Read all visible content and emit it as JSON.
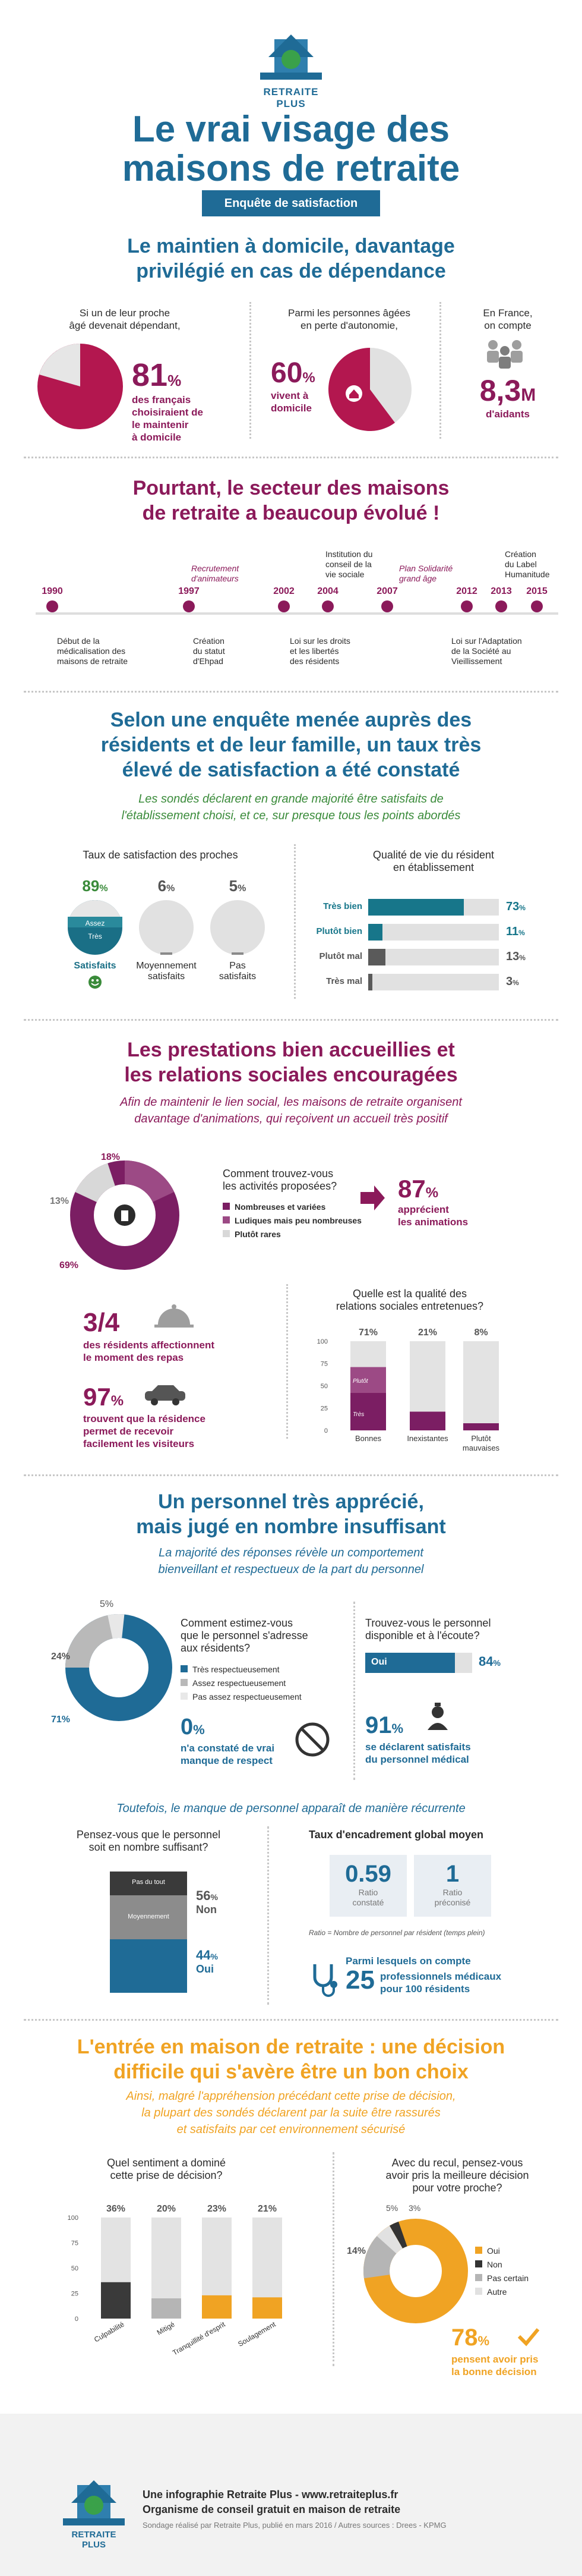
{
  "brand": {
    "name": "RETRAITE PLUS"
  },
  "header": {
    "title1": "Le vrai visage des",
    "title2": "maisons de retraite",
    "badge": "Enquête de satisfaction"
  },
  "s1": {
    "heading1": "Le maintien à domicile, davantage",
    "heading2": "privilégié en cas de dépendance",
    "c1_l1": "Si un de leur proche",
    "c1_l2": "âgé devenait dépendant,",
    "c1_pct": "81",
    "c1_unit": "%",
    "c1_t1": "des français",
    "c1_t2": "choisiraient de",
    "c1_t3": "le maintenir",
    "c1_t4": "à domicile",
    "c2_l1": "Parmi les personnes âgées",
    "c2_l2": "en perte d'autonomie,",
    "c2_pct": "60",
    "c2_unit": "%",
    "c2_t1": "vivent à",
    "c2_t2": "domicile",
    "c3_l1": "En France,",
    "c3_l2": "on compte",
    "c3_big": "8,3",
    "c3_unit": "M",
    "c3_t": "d'aidants"
  },
  "s2": {
    "heading1": "Pourtant, le secteur des maisons",
    "heading2": "de retraite a beaucoup évolué !",
    "years": [
      "1990",
      "1997",
      "2002",
      "2004",
      "2007",
      "2012",
      "2013",
      "2015"
    ],
    "above": {
      "recr1": "Recrutement",
      "recr2": "d'animateurs",
      "inst1": "Institution du",
      "inst2": "conseil de la",
      "inst3": "vie sociale",
      "plan1": "Plan Solidarité",
      "plan2": "grand âge",
      "lab1": "Création",
      "lab2": "du Label",
      "lab3": "Humanitude"
    },
    "below": {
      "deb1": "Début de la",
      "deb2": "médicalisation des",
      "deb3": "maisons de retraite",
      "cre1": "Création",
      "cre2": "du statut",
      "cre3": "d'Ehpad",
      "loi1": "Loi sur les droits",
      "loi2": "et les libertés",
      "loi3": "des résidents",
      "adp1": "Loi sur l'Adaptation",
      "adp2": "de la Société au",
      "adp3": "Vieillissement"
    }
  },
  "s3": {
    "heading1": "Selon une enquête menée auprès des",
    "heading2": "résidents et de leur famille, un taux très",
    "heading3": "élevé de satisfaction a été constaté",
    "sub1": "Les sondés déclarent en grande majorité être satisfaits de",
    "sub2": "l'établissement choisi, et ce, sur presque tous les points abordés",
    "left_title": "Taux de satisfaction des proches",
    "p1": "89",
    "p2": "6",
    "p3": "5",
    "pct": "%",
    "assez": "Assez",
    "tres": "Très",
    "l1": "Satisfaits",
    "l2a": "Moyennement",
    "l2b": "satisfaits",
    "l3a": "Pas",
    "l3b": "satisfaits",
    "right_title1": "Qualité de vie du résident",
    "right_title2": "en établissement",
    "rows": [
      {
        "label": "Très bien",
        "value": "73",
        "v": 73
      },
      {
        "label": "Plutôt bien",
        "value": "11",
        "v": 11
      },
      {
        "label": "Plutôt mal",
        "value": "13",
        "v": 13
      },
      {
        "label": "Très mal",
        "value": "3",
        "v": 3
      }
    ]
  },
  "s4": {
    "heading1": "Les prestations bien accueillies et",
    "heading2": "les relations sociales encouragées",
    "sub1": "Afin de maintenir le lien social, les maisons de retraite organisent",
    "sub2": "davantage d'animations, qui reçoivent un accueil très positif",
    "donut_l18": "18%",
    "donut_l13": "13%",
    "donut_l69": "69%",
    "q1": "Comment trouvez-vous",
    "q2": "les activités proposées?",
    "leg1": "Nombreuses et variées",
    "leg2": "Ludiques mais peu nombreuses",
    "leg3": "Plutôt rares",
    "s87": "87",
    "s87u": "%",
    "s87a": "apprécient",
    "s87b": "les animations",
    "meal_big": "3/4",
    "meal1": "des résidents affectionnent",
    "meal2": "le moment des repas",
    "vis_big": "97",
    "vis_u": "%",
    "vis1": "trouvent que la résidence",
    "vis2": "permet de recevoir",
    "vis3": "facilement les visiteurs",
    "rq1": "Quelle est la qualité des",
    "rq2": "relations sociales entretenues?",
    "axis": [
      "100",
      "75",
      "50",
      "25",
      "0"
    ],
    "stack_vals": [
      "71%",
      "21%",
      "8%"
    ],
    "cats": [
      "Bonnes",
      "Inexistantes",
      "Plutôt",
      "mauvaises"
    ],
    "plutot": "Plutôt",
    "tresS": "Très"
  },
  "s5": {
    "heading1": "Un personnel très apprécié,",
    "heading2": "mais jugé en nombre insuffisant",
    "sub1": "La majorité des réponses révèle un comportement",
    "sub2": "bienveillant et respectueux de la part du personnel",
    "d5": "5%",
    "d24": "24%",
    "d71": "71%",
    "q1": "Comment estimez-vous",
    "q2": "que le personnel s'adresse",
    "q3": "aux résidents?",
    "leg1": "Très respectueusement",
    "leg2": "Assez respectueusement",
    "leg3": "Pas assez respectueusement",
    "zero": "0",
    "zero_u": "%",
    "zero1": "n'a constaté de vrai",
    "zero2": "manque de respect",
    "qr1": "Trouvez-vous le personnel",
    "qr2": "disponible et à l'écoute?",
    "oui": "Oui",
    "p84": "84",
    "p84u": "%",
    "p91": "91",
    "p91u": "%",
    "p91a": "se déclarent satisfaits",
    "p91b": "du personnel médical",
    "note": "Toutefois, le manque de personnel apparaît de manière récurrente",
    "nq1": "Pensez-vous que le personnel",
    "nq2": "soit en nombre suffisant?",
    "pasdutout": "Pas du tout",
    "moyennement": "Moyennement",
    "p56": "56",
    "p56u": "%",
    "non": "Non",
    "p44": "44",
    "p44u": "%",
    "oui2": "Oui",
    "rt": "Taux d'encadrement global moyen",
    "r1": "0.59",
    "r1a": "Ratio",
    "r1b": "constaté",
    "r2": "1",
    "r2a": "Ratio",
    "r2b": "préconisé",
    "rnote": "Ratio = Nombre de personnel par résident (temps plein)",
    "med_pre": "Parmi lesquels on compte",
    "med_big": "25",
    "med1": "professionnels médicaux",
    "med2": "pour 100 résidents"
  },
  "s6": {
    "heading1": "L'entrée en maison de retraite : une décision",
    "heading2": "difficile qui s'avère être un bon choix",
    "sub1": "Ainsi, malgré l'appréhension précédant cette prise de décision,",
    "sub2": "la plupart des sondés déclarent par la suite être rassurés",
    "sub3": "et satisfaits par cet environnement sécurisé",
    "q1": "Quel sentiment a dominé",
    "q2": "cette prise de décision?",
    "axis": [
      "100",
      "75",
      "50",
      "25",
      "0"
    ],
    "vals": [
      "36%",
      "20%",
      "23%",
      "21%"
    ],
    "cats": [
      "Culpabilité",
      "Mitigé",
      "Tranquillité d'esprit",
      "Soulagement"
    ],
    "rq1": "Avec du recul, pensez-vous",
    "rq2": "avoir pris la meilleure décision",
    "rq3": "pour votre proche?",
    "d5": "5%",
    "d3": "3%",
    "d14": "14%",
    "leg1": "Oui",
    "leg2": "Non",
    "leg3": "Pas certain",
    "leg4": "Autre",
    "p78": "78",
    "p78u": "%",
    "p78a": "pensent avoir pris",
    "p78b": "la bonne décision"
  },
  "footer": {
    "l1": "Une infographie Retraite Plus - www.retraiteplus.fr",
    "l2": "Organisme de conseil gratuit en maison de retraite",
    "l3": "Sondage réalisé par Retraite Plus, publié en mars 2016 / Autres sources : Drees - KPMG"
  },
  "colors": {
    "purple": "#8b1a5a",
    "blue": "#1f6b96",
    "teal": "#17768a",
    "orange": "#f0a323",
    "green": "#3a8b3a",
    "grey": "#d9d9d9",
    "dark": "#3a3a3a"
  }
}
